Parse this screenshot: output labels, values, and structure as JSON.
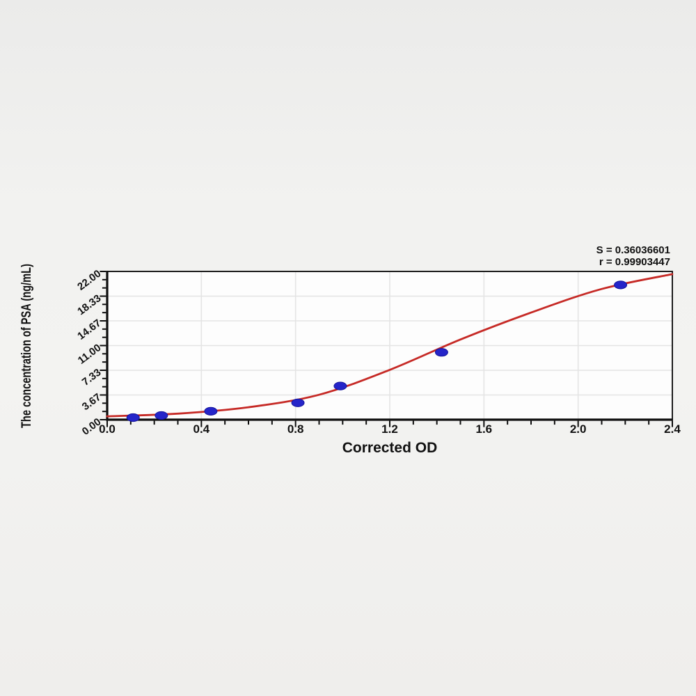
{
  "page": {
    "background_top": "#ebebea",
    "background_mid": "#f3f3f1",
    "background_bottom": "#efeeec"
  },
  "chart_data": {
    "type": "scatter",
    "title": "",
    "xlabel": "Corrected OD",
    "ylabel": "The concentration of PSA (ng/mL)",
    "annotations": {
      "s_line": "S = 0.36036601",
      "r_line": "r = 0.99903447"
    },
    "stats": {
      "S": "0.36036601",
      "r": "0.99903447"
    },
    "xlim": [
      0,
      2.4
    ],
    "ylim": [
      0,
      22
    ],
    "grid": true,
    "legend": false,
    "x_axis": {
      "tick_labels": [
        "0.0",
        "0.4",
        "0.8",
        "1.2",
        "1.6",
        "2.0",
        "2.4"
      ],
      "major_values": [
        0,
        0.4,
        0.8,
        1.2,
        1.6,
        2.0,
        2.4
      ],
      "minor_step": 0.1
    },
    "y_axis": {
      "tick_labels": [
        "0.00",
        "3.67",
        "7.33",
        "11.00",
        "14.67",
        "18.33",
        "22.00"
      ],
      "major_values": [
        0,
        3.6667,
        7.3333,
        11,
        14.6667,
        18.3333,
        22
      ],
      "minor_divisions": 3,
      "tick_label_angle_deg": -37
    },
    "series": [
      {
        "name": "standard-points",
        "type": "scatter",
        "color": "#2525c9",
        "edge_color": "#15159a",
        "x": [
          0.11,
          0.23,
          0.44,
          0.81,
          0.99,
          1.42,
          2.18
        ],
        "y": [
          0.3125,
          0.625,
          1.25,
          2.5,
          5,
          10,
          20
        ]
      },
      {
        "name": "4pl-fit-curve",
        "type": "line",
        "color": "#c62a26",
        "x": [
          0,
          0.3,
          0.6,
          0.9,
          1.2,
          1.5,
          1.8,
          2.1,
          2.4
        ],
        "y": [
          0.5,
          0.9,
          1.85,
          3.7,
          7.4,
          11.9,
          15.9,
          19.4,
          21.6
        ]
      }
    ],
    "colors": {
      "plot_bg": "#fdfdfd",
      "grid": "#e4e4e4",
      "frame": "#1c1c1c",
      "axis": "#0d0d0d",
      "text": "#111111"
    }
  }
}
